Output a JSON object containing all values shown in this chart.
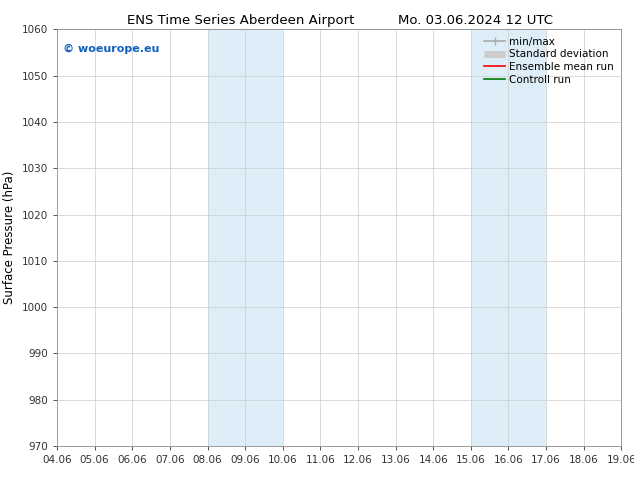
{
  "title_left": "ENS Time Series Aberdeen Airport",
  "title_right": "Mo. 03.06.2024 12 UTC",
  "ylabel": "Surface Pressure (hPa)",
  "ylim": [
    970,
    1060
  ],
  "yticks": [
    970,
    980,
    990,
    1000,
    1010,
    1020,
    1030,
    1040,
    1050,
    1060
  ],
  "xtick_labels": [
    "04.06",
    "05.06",
    "06.06",
    "07.06",
    "08.06",
    "09.06",
    "10.06",
    "11.06",
    "12.06",
    "13.06",
    "14.06",
    "15.06",
    "16.06",
    "17.06",
    "18.06",
    "19.06"
  ],
  "xtick_positions": [
    0,
    1,
    2,
    3,
    4,
    5,
    6,
    7,
    8,
    9,
    10,
    11,
    12,
    13,
    14,
    15
  ],
  "shaded_regions": [
    {
      "xmin": 4,
      "xmax": 6,
      "color": "#ddeef8"
    },
    {
      "xmin": 11,
      "xmax": 13,
      "color": "#ddeef8"
    }
  ],
  "watermark_text": "© woeurope.eu",
  "watermark_color": "#1060c0",
  "legend_items": [
    {
      "label": "min/max",
      "color": "#aaaaaa",
      "lw": 1.2
    },
    {
      "label": "Standard deviation",
      "color": "#cccccc",
      "lw": 5
    },
    {
      "label": "Ensemble mean run",
      "color": "#ff0000",
      "lw": 1.2
    },
    {
      "label": "Controll run",
      "color": "#007700",
      "lw": 1.2
    }
  ],
  "bg_color": "#ffffff",
  "grid_color": "#cccccc",
  "tick_color": "#333333",
  "title_fontsize": 9.5,
  "axis_label_fontsize": 8.5,
  "tick_fontsize": 7.5,
  "legend_fontsize": 7.5,
  "watermark_fontsize": 8
}
